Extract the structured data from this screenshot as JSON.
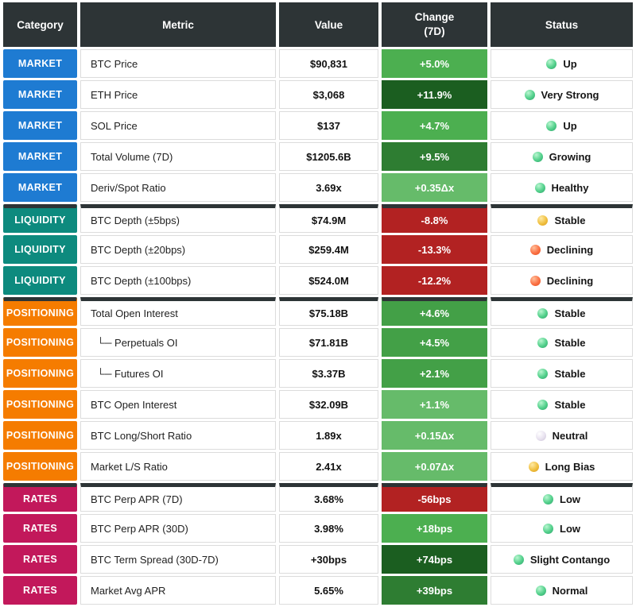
{
  "header": {
    "category": "Category",
    "metric": "Metric",
    "value": "Value",
    "change_line1": "Change",
    "change_line2": "(7D)",
    "status": "Status"
  },
  "colors": {
    "header_bg": "#2d3436",
    "market": "#1e7bd2",
    "liquidity": "#0d8a7e",
    "positioning": "#f57c00",
    "rates": "#c2185b",
    "green_light": "#66bb6a",
    "green_medium": "#43a047",
    "green_medium2": "#4caf50",
    "green_dark": "#2e7d32",
    "green_darkest": "#1b5e20",
    "red": "#b22222"
  },
  "chart_data": {
    "type": "table",
    "columns": [
      "Category",
      "Metric",
      "Value",
      "Change (7D)",
      "Status"
    ],
    "rows": [
      {
        "category": "MARKET",
        "category_color": "#1e7bd2",
        "metric": "BTC Price",
        "sub": false,
        "value": "$90,831",
        "change": "+5.0%",
        "change_color": "#4caf50",
        "status": "Up",
        "dot": "green",
        "group_start": false
      },
      {
        "category": "MARKET",
        "category_color": "#1e7bd2",
        "metric": "ETH Price",
        "sub": false,
        "value": "$3,068",
        "change": "+11.9%",
        "change_color": "#1b5e20",
        "status": "Very Strong",
        "dot": "green",
        "group_start": false
      },
      {
        "category": "MARKET",
        "category_color": "#1e7bd2",
        "metric": "SOL Price",
        "sub": false,
        "value": "$137",
        "change": "+4.7%",
        "change_color": "#4caf50",
        "status": "Up",
        "dot": "green",
        "group_start": false
      },
      {
        "category": "MARKET",
        "category_color": "#1e7bd2",
        "metric": "Total Volume (7D)",
        "sub": false,
        "value": "$1205.6B",
        "change": "+9.5%",
        "change_color": "#2e7d32",
        "status": "Growing",
        "dot": "green",
        "group_start": false
      },
      {
        "category": "MARKET",
        "category_color": "#1e7bd2",
        "metric": "Deriv/Spot Ratio",
        "sub": false,
        "value": "3.69x",
        "change": "+0.35Δx",
        "change_color": "#66bb6a",
        "status": "Healthy",
        "dot": "green",
        "group_start": false
      },
      {
        "category": "LIQUIDITY",
        "category_color": "#0d8a7e",
        "metric": "BTC Depth (±5bps)",
        "sub": false,
        "value": "$74.9M",
        "change": "-8.8%",
        "change_color": "#b22222",
        "status": "Stable",
        "dot": "yellow",
        "group_start": true
      },
      {
        "category": "LIQUIDITY",
        "category_color": "#0d8a7e",
        "metric": "BTC Depth (±20bps)",
        "sub": false,
        "value": "$259.4M",
        "change": "-13.3%",
        "change_color": "#b22222",
        "status": "Declining",
        "dot": "orange",
        "group_start": false
      },
      {
        "category": "LIQUIDITY",
        "category_color": "#0d8a7e",
        "metric": "BTC Depth (±100bps)",
        "sub": false,
        "value": "$524.0M",
        "change": "-12.2%",
        "change_color": "#b22222",
        "status": "Declining",
        "dot": "orange",
        "group_start": false
      },
      {
        "category": "POSITIONING",
        "category_color": "#f57c00",
        "metric": "Total Open Interest",
        "sub": false,
        "value": "$75.18B",
        "change": "+4.6%",
        "change_color": "#43a047",
        "status": "Stable",
        "dot": "green",
        "group_start": true
      },
      {
        "category": "POSITIONING",
        "category_color": "#f57c00",
        "metric": "└─ Perpetuals OI",
        "sub": true,
        "value": "$71.81B",
        "change": "+4.5%",
        "change_color": "#43a047",
        "status": "Stable",
        "dot": "green",
        "group_start": false
      },
      {
        "category": "POSITIONING",
        "category_color": "#f57c00",
        "metric": "└─ Futures OI",
        "sub": true,
        "value": "$3.37B",
        "change": "+2.1%",
        "change_color": "#43a047",
        "status": "Stable",
        "dot": "green",
        "group_start": false
      },
      {
        "category": "POSITIONING",
        "category_color": "#f57c00",
        "metric": "BTC Open Interest",
        "sub": false,
        "value": "$32.09B",
        "change": "+1.1%",
        "change_color": "#66bb6a",
        "status": "Stable",
        "dot": "green",
        "group_start": false
      },
      {
        "category": "POSITIONING",
        "category_color": "#f57c00",
        "metric": "BTC Long/Short Ratio",
        "sub": false,
        "value": "1.89x",
        "change": "+0.15Δx",
        "change_color": "#66bb6a",
        "status": "Neutral",
        "dot": "pearl",
        "group_start": false
      },
      {
        "category": "POSITIONING",
        "category_color": "#f57c00",
        "metric": "Market L/S Ratio",
        "sub": false,
        "value": "2.41x",
        "change": "+0.07Δx",
        "change_color": "#66bb6a",
        "status": "Long Bias",
        "dot": "yellow",
        "group_start": false
      },
      {
        "category": "RATES",
        "category_color": "#c2185b",
        "metric": "BTC Perp APR (7D)",
        "sub": false,
        "value": "3.68%",
        "change": "-56bps",
        "change_color": "#b22222",
        "status": "Low",
        "dot": "green",
        "group_start": true
      },
      {
        "category": "RATES",
        "category_color": "#c2185b",
        "metric": "BTC Perp APR (30D)",
        "sub": false,
        "value": "3.98%",
        "change": "+18bps",
        "change_color": "#4caf50",
        "status": "Low",
        "dot": "green",
        "group_start": false
      },
      {
        "category": "RATES",
        "category_color": "#c2185b",
        "metric": "BTC Term Spread (30D-7D)",
        "sub": false,
        "value": "+30bps",
        "change": "+74bps",
        "change_color": "#1b5e20",
        "status": "Slight Contango",
        "dot": "green",
        "group_start": false
      },
      {
        "category": "RATES",
        "category_color": "#c2185b",
        "metric": "Market Avg APR",
        "sub": false,
        "value": "5.65%",
        "change": "+39bps",
        "change_color": "#2e7d32",
        "status": "Normal",
        "dot": "green",
        "group_start": false
      }
    ]
  }
}
